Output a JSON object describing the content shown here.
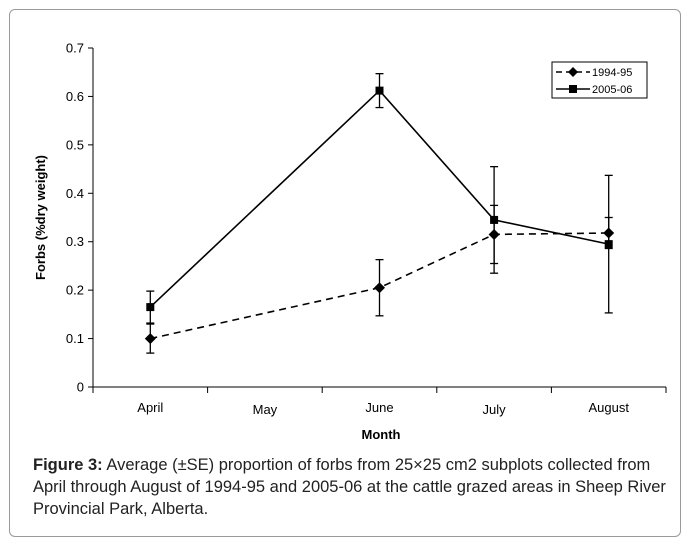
{
  "chart_data": {
    "type": "line",
    "title": "",
    "xlabel": "Month",
    "ylabel": "Forbs (%dry weight)",
    "categories": [
      "April",
      "May",
      "June",
      "July",
      "August"
    ],
    "ylim": [
      0,
      0.7
    ],
    "yticks": [
      "0",
      "0.1",
      "0.2",
      "0.3",
      "0.4",
      "0.5",
      "0.6",
      "0.7"
    ],
    "grid": false,
    "legend_position": "top-right",
    "series": [
      {
        "name": "1994-95",
        "style": "dashed",
        "marker": "diamond",
        "color": "#000000",
        "points": [
          {
            "category": "April",
            "value": 0.1,
            "se": 0.03
          },
          {
            "category": "June",
            "value": 0.205,
            "se": 0.058
          },
          {
            "category": "July",
            "value": 0.315,
            "se": 0.06
          },
          {
            "category": "August",
            "value": 0.318,
            "se": 0.032
          }
        ]
      },
      {
        "name": "2005-06",
        "style": "solid",
        "marker": "square",
        "color": "#000000",
        "points": [
          {
            "category": "April",
            "value": 0.165,
            "se": 0.033
          },
          {
            "category": "June",
            "value": 0.612,
            "se": 0.035
          },
          {
            "category": "July",
            "value": 0.345,
            "se": 0.11
          },
          {
            "category": "August",
            "value": 0.295,
            "se": 0.142
          }
        ]
      }
    ]
  },
  "caption": {
    "label": "Figure 3:",
    "text": " Average (±SE) proportion of forbs from 25×25 cm2 subplots collected from April through August of 1994-95 and 2005-06 at the cattle grazed areas in Sheep River Provincial Park, Alberta."
  }
}
